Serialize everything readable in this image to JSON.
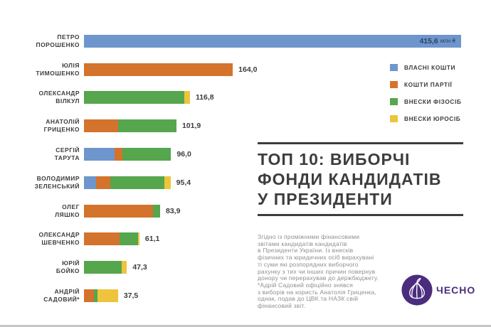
{
  "title": {
    "lines": [
      "ТОП 10: ВИБОРЧІ",
      "ФОНДИ КАНДИДАТІВ",
      "У ПРЕЗИДЕНТИ"
    ]
  },
  "footnote": {
    "lines": [
      "Згідно із проміжними фінансовими",
      "звітами кандидатів кандидатів",
      "в Президенти України. Із внесків",
      "фізичних та юридичних осіб вирахувані",
      "ті суми які розпорядних виборчого",
      "рахунку з тих чи інших причин повернув",
      "донору чи перерахував до держбюджету.",
      "*Адрій Садовий офіційно знявся",
      "з виборів на користь Анатолія Гриценка,",
      "однак, подав до ЦВК та НАЗК свій",
      "фінансовий звіт."
    ]
  },
  "logo": {
    "wordmark": "ЧЕСНО",
    "color": "#4b2d7f"
  },
  "colors": {
    "own": "#6e96cc",
    "party": "#d4732c",
    "individuals": "#55a64c",
    "legal": "#eec43c",
    "title_text": "#3d3d3d",
    "footnote_text": "#8f8f8f",
    "inside_value_text": "#2e4163"
  },
  "chart_data": {
    "type": "bar",
    "orientation": "horizontal",
    "unit": "млн ₴",
    "x_max": 415.6,
    "grid": false,
    "legend_position": "right",
    "series_keys": [
      "own",
      "party",
      "individuals",
      "legal"
    ],
    "legend": [
      {
        "key": "own",
        "label": "ВЛАСНІ КОШТИ",
        "color": "#6e96cc"
      },
      {
        "key": "party",
        "label": "КОШТИ ПАРТІЇ",
        "color": "#d4732c"
      },
      {
        "key": "individuals",
        "label": "ВНЕСКИ ФІЗОСІБ",
        "color": "#55a64c"
      },
      {
        "key": "legal",
        "label": "ВНЕСКИ ЮРОСІБ",
        "color": "#eec43c"
      }
    ],
    "bars": [
      {
        "name_lines": [
          "ПЕТРО",
          "ПОРОШЕНКО"
        ],
        "total": 415.6,
        "label": "415,6",
        "label_inside": true,
        "unit": "млн ₴",
        "segments": {
          "own": 415.6
        }
      },
      {
        "name_lines": [
          "ЮЛІЯ",
          "ТИМОШЕНКО"
        ],
        "total": 164.0,
        "label": "164,0",
        "segments": {
          "party": 164.0
        }
      },
      {
        "name_lines": [
          "ОЛЕКСАНДР",
          "ВІЛКУЛ"
        ],
        "total": 116.8,
        "label": "116,8",
        "segments": {
          "individuals": 110.9,
          "legal": 5.9
        }
      },
      {
        "name_lines": [
          "АНАТОЛІЙ",
          "ГРИЦЕНКО"
        ],
        "total": 101.9,
        "label": "101,9",
        "segments": {
          "party": 37.5,
          "individuals": 64.4
        }
      },
      {
        "name_lines": [
          "СЕРГІЙ",
          "ТАРУТА"
        ],
        "total": 96.0,
        "label": "96,0",
        "segments": {
          "own": 34.0,
          "party": 8.0,
          "individuals": 54.0
        }
      },
      {
        "name_lines": [
          "ВОЛОДИМИР",
          "ЗЕЛЕНСЬКИЙ"
        ],
        "total": 95.4,
        "label": "95,4",
        "segments": {
          "own": 13.0,
          "party": 16.0,
          "individuals": 59.4,
          "legal": 7.0
        }
      },
      {
        "name_lines": [
          "ОЛЕГ",
          "ЛЯШКО"
        ],
        "total": 83.9,
        "label": "83,9",
        "segments": {
          "party": 76.0,
          "individuals": 7.9
        }
      },
      {
        "name_lines": [
          "ОЛЕКСАНДР",
          "ШЕВЧЕНКО"
        ],
        "total": 61.1,
        "label": "61,1",
        "segments": {
          "party": 39.0,
          "individuals": 20.5,
          "legal": 1.6
        }
      },
      {
        "name_lines": [
          "ЮРІЙ",
          "БОЙКО"
        ],
        "total": 47.3,
        "label": "47,3",
        "segments": {
          "individuals": 41.5,
          "legal": 5.8
        }
      },
      {
        "name_lines": [
          "АНДРІЙ",
          "САДОВИЙ*"
        ],
        "total": 37.5,
        "label": "37,5",
        "segments": {
          "party": 11.0,
          "individuals": 4.0,
          "legal": 22.5
        }
      }
    ]
  }
}
